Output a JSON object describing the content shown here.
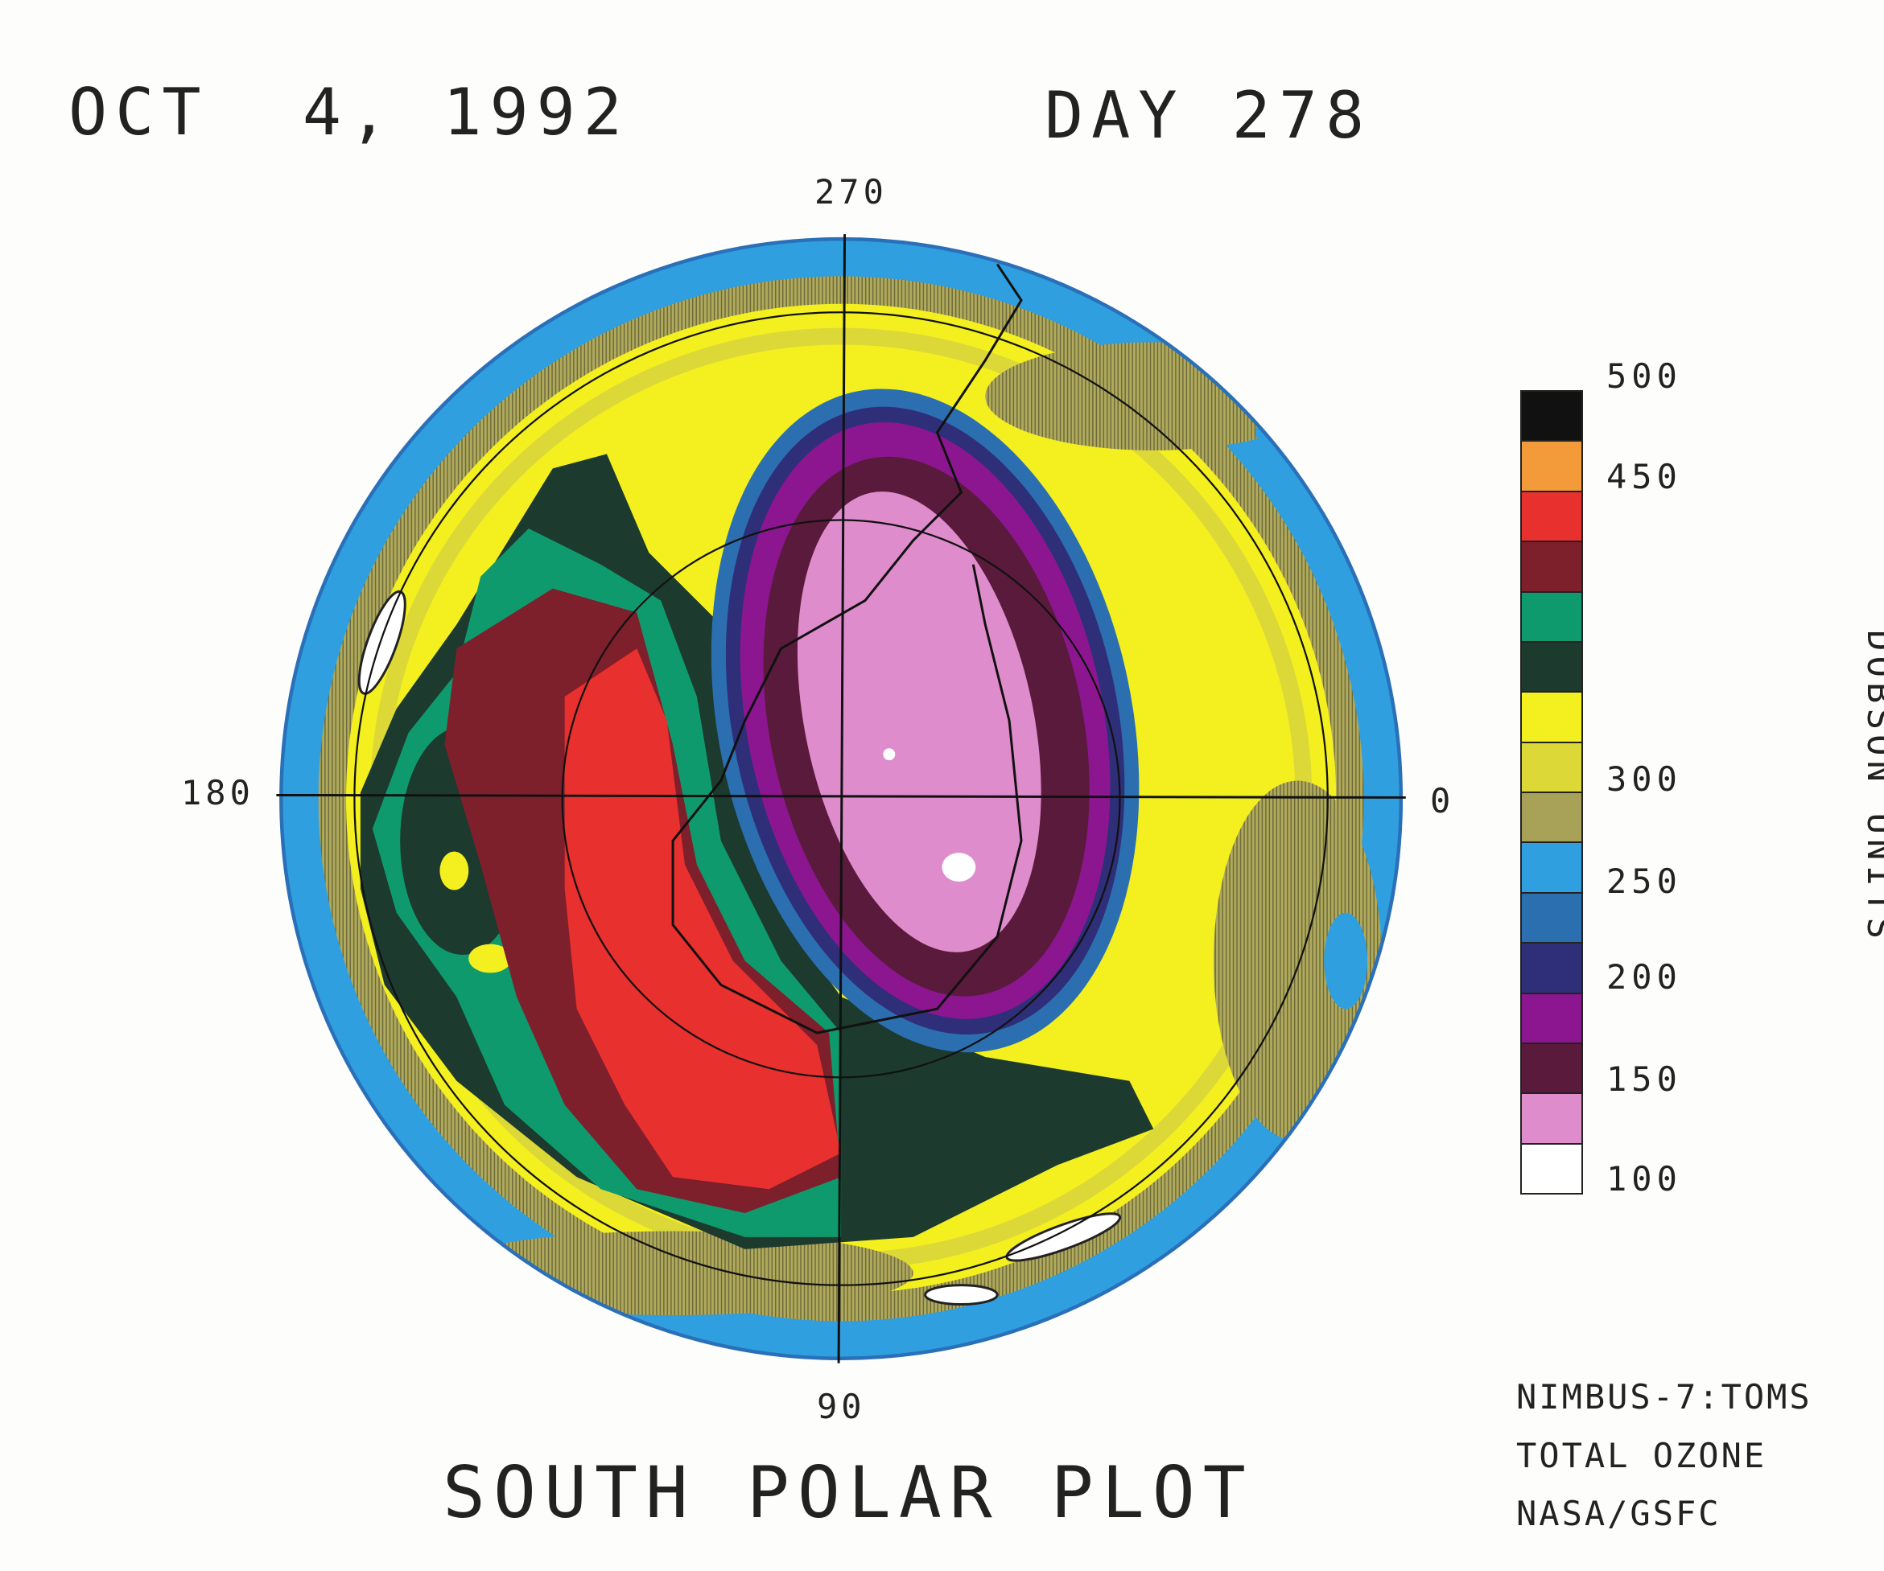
{
  "header": {
    "date": "OCT  4, 1992",
    "day": "DAY 278"
  },
  "footer": {
    "title": "SOUTH POLAR PLOT"
  },
  "credits": [
    "NIMBUS-7:TOMS",
    "TOTAL OZONE",
    "NASA/GSFC"
  ],
  "chart_data": {
    "type": "heatmap",
    "projection": "south polar stereographic",
    "title": "SOUTH POLAR PLOT",
    "date": "OCT 4, 1992",
    "day": "DAY 278",
    "longitude_labels": {
      "top": "270",
      "left": "180",
      "right": "0",
      "bottom": "90"
    },
    "colorbar": {
      "label": "DOBSON UNITS",
      "range": [
        100,
        500
      ],
      "tick_labels": [
        "500",
        "450",
        "300",
        "250",
        "200",
        "150",
        "100"
      ],
      "bins": [
        {
          "range": [
            475,
            500
          ],
          "color": "#111111"
        },
        {
          "range": [
            450,
            475
          ],
          "color": "#f39a3a"
        },
        {
          "range": [
            425,
            450
          ],
          "color": "#e8302e"
        },
        {
          "range": [
            400,
            425
          ],
          "color": "#7e1f2c"
        },
        {
          "range": [
            375,
            400
          ],
          "color": "#0f9a6e"
        },
        {
          "range": [
            350,
            375
          ],
          "color": "#1c3a2e"
        },
        {
          "range": [
            325,
            350
          ],
          "color": "#f4f020"
        },
        {
          "range": [
            300,
            325
          ],
          "color": "#dcd838"
        },
        {
          "range": [
            275,
            300
          ],
          "color": "#a8a258"
        },
        {
          "range": [
            250,
            275
          ],
          "color": "#2f9fe0"
        },
        {
          "range": [
            225,
            250
          ],
          "color": "#2c6fb0"
        },
        {
          "range": [
            200,
            225
          ],
          "color": "#2e2f78"
        },
        {
          "range": [
            175,
            200
          ],
          "color": "#8c1690"
        },
        {
          "range": [
            150,
            175
          ],
          "color": "#5a1a3c"
        },
        {
          "range": [
            125,
            150
          ],
          "color": "#de8ccc"
        },
        {
          "range": [
            100,
            125
          ],
          "color": "#ffffff"
        }
      ]
    },
    "features": [
      {
        "name": "ozone hole minimum",
        "value_range": [
          100,
          150
        ]
      },
      {
        "name": "high ozone collar maximum",
        "value_range": [
          425,
          450
        ]
      }
    ]
  }
}
